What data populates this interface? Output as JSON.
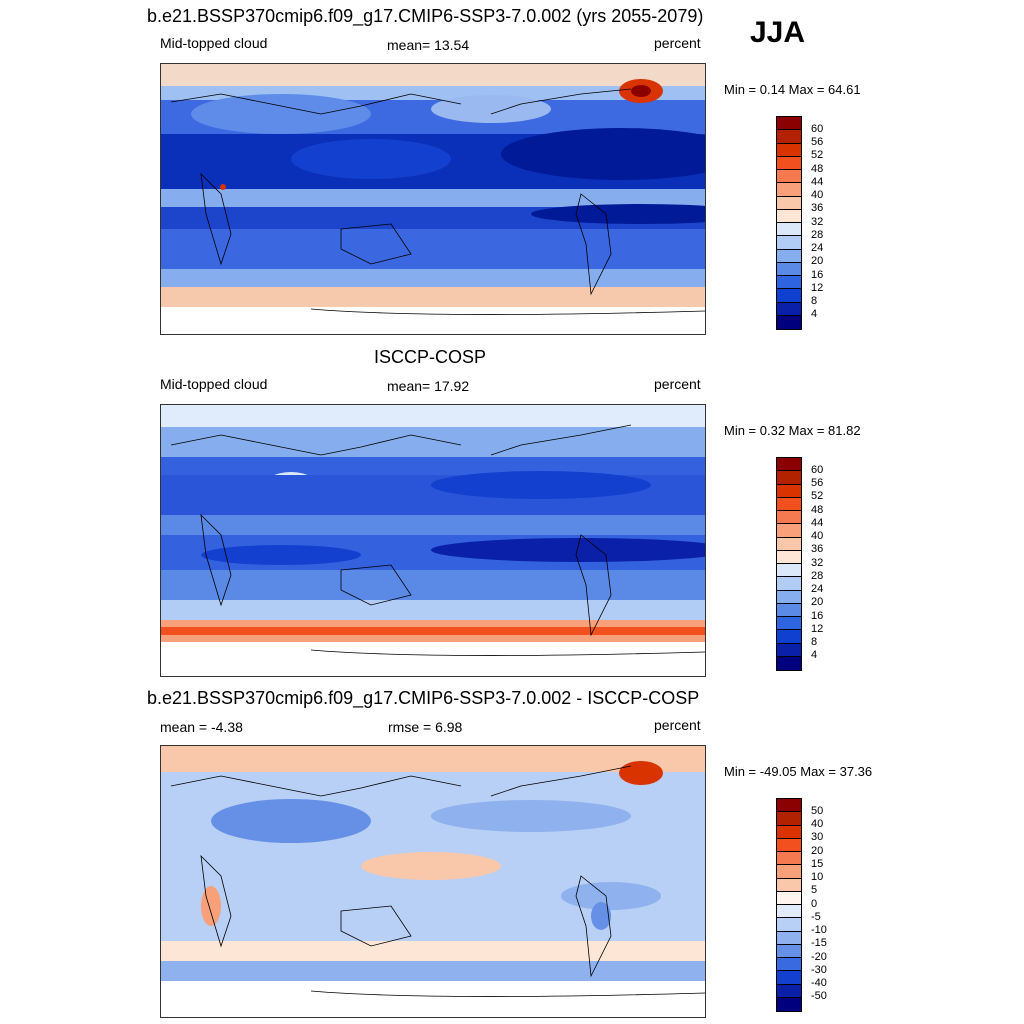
{
  "season": "JJA",
  "panels": [
    {
      "title": "b.e21.BSSP370cmip6.f09_g17.CMIP6-SSP3-7.0.002 (yrs 2055-2079)",
      "left": "Mid-topped cloud",
      "center": "mean=  13.54",
      "right": "percent",
      "minmax": "Min =   0.14 Max =  64.61",
      "colorbar": {
        "labels": [
          "60",
          "56",
          "52",
          "48",
          "44",
          "40",
          "36",
          "32",
          "28",
          "24",
          "20",
          "16",
          "12",
          "8",
          "4"
        ],
        "colors": [
          "#8b0000",
          "#b22200",
          "#d93300",
          "#f2501f",
          "#f57a4f",
          "#f7a07a",
          "#f9c8aa",
          "#fde6d6",
          "#dbe8fa",
          "#b2cdf5",
          "#86aeef",
          "#5a8ae6",
          "#2e64e0",
          "#1040d0",
          "#0a20a8",
          "#00007f"
        ]
      }
    },
    {
      "title": "ISCCP-COSP",
      "left": "Mid-topped cloud",
      "center": "mean=  17.92",
      "right": "percent",
      "minmax": "Min =   0.32 Max =  81.82",
      "colorbar": {
        "labels": [
          "60",
          "56",
          "52",
          "48",
          "44",
          "40",
          "36",
          "32",
          "28",
          "24",
          "20",
          "16",
          "12",
          "8",
          "4"
        ],
        "colors": [
          "#8b0000",
          "#b22200",
          "#d93300",
          "#f2501f",
          "#f57a4f",
          "#f7a07a",
          "#f9c8aa",
          "#fde6d6",
          "#dbe8fa",
          "#b2cdf5",
          "#86aeef",
          "#5a8ae6",
          "#2e64e0",
          "#1040d0",
          "#0a20a8",
          "#00007f"
        ]
      }
    },
    {
      "title": "b.e21.BSSP370cmip6.f09_g17.CMIP6-SSP3-7.0.002 - ISCCP-COSP",
      "left": "mean =  -4.38",
      "center": "rmse =   6.98",
      "right": "percent",
      "minmax": "Min = -49.05 Max =  37.36",
      "colorbar": {
        "labels": [
          "50",
          "40",
          "30",
          "20",
          "15",
          "10",
          "5",
          "0",
          "-5",
          "-10",
          "-15",
          "-20",
          "-30",
          "-40",
          "-50"
        ],
        "colors": [
          "#8b0000",
          "#b22200",
          "#d93300",
          "#f2501f",
          "#f57a4f",
          "#f7a07a",
          "#f9c8aa",
          "#fff5ee",
          "#e0ecfb",
          "#b8d0f5",
          "#8fb2ef",
          "#6690e6",
          "#3a6ae0",
          "#1440d0",
          "#0a20a8",
          "#00007f"
        ]
      }
    }
  ]
}
